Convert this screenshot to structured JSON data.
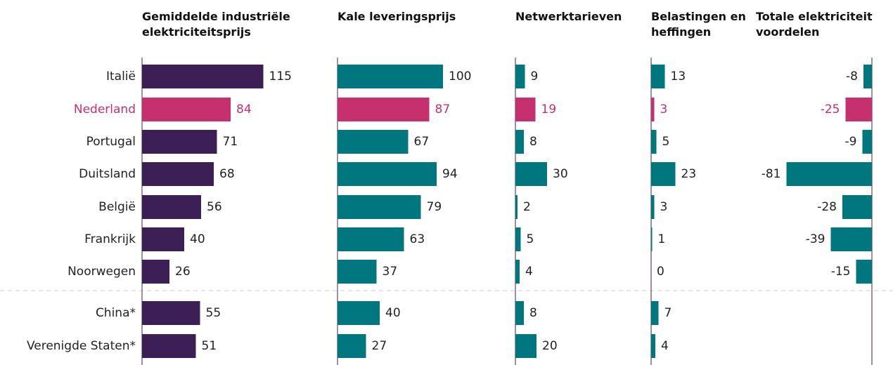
{
  "chart_data": {
    "type": "bar",
    "categories": [
      "Italië",
      "Nederland",
      "Portugal",
      "Duitsland",
      "België",
      "Frankrijk",
      "Noorwegen",
      "China*",
      "Verenigde Staten*"
    ],
    "highlight": "Nederland",
    "highlight_color": "#c6306f",
    "series": [
      {
        "name": "Gemiddelde industriële elektriciteitsprijs",
        "color": "#3c1f55",
        "values": [
          115,
          84,
          71,
          68,
          56,
          40,
          26,
          55,
          51
        ]
      },
      {
        "name": "Kale leveringsprijs",
        "color": "#00767e",
        "values": [
          100,
          87,
          67,
          94,
          79,
          63,
          37,
          40,
          27
        ]
      },
      {
        "name": "Netwerktarieven",
        "color": "#00767e",
        "values": [
          9,
          19,
          8,
          30,
          2,
          5,
          4,
          8,
          20
        ]
      },
      {
        "name": "Belastingen en heffingen",
        "color": "#00767e",
        "values": [
          13,
          3,
          5,
          23,
          3,
          1,
          0,
          7,
          4
        ]
      },
      {
        "name": "Totale elektriciteit voordelen",
        "color": "#00767e",
        "values": [
          -8,
          -25,
          -9,
          -81,
          -28,
          -39,
          -15,
          null,
          null
        ]
      }
    ]
  }
}
